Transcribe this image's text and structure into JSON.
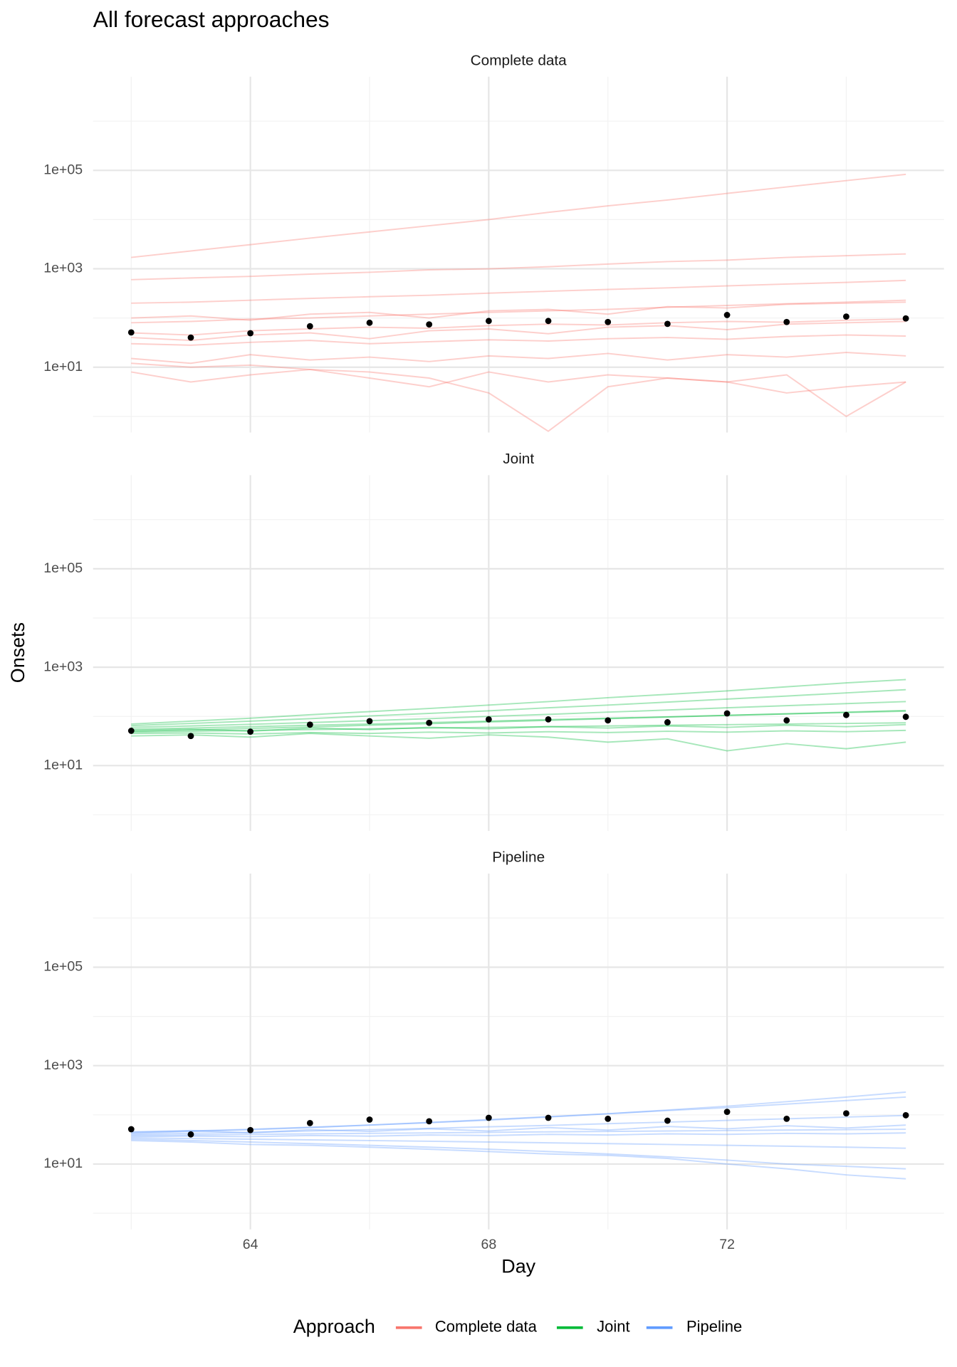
{
  "chart_data": {
    "type": "line",
    "title": "All forecast approaches",
    "x_label": "Day",
    "y_label": "Onsets",
    "legend_title": "Approach",
    "log_y": true,
    "grid": true,
    "line_opacity": 0.35,
    "legend_position": "bottom",
    "x": [
      62,
      63,
      64,
      65,
      66,
      67,
      68,
      69,
      70,
      71,
      72,
      73,
      74,
      75
    ],
    "observed": [
      51,
      40,
      49,
      68,
      80,
      74,
      87,
      87,
      83,
      76,
      115,
      83,
      107,
      98
    ],
    "xlim": [
      61.36,
      75.64
    ],
    "xticks": [
      64,
      68,
      72
    ],
    "minor_xticks": [
      62,
      66,
      70,
      74
    ],
    "ylim": [
      0.47,
      8000000
    ],
    "yticks": [
      {
        "value": 10,
        "label": "1e+01"
      },
      {
        "value": 1000,
        "label": "1e+03"
      },
      {
        "value": 100000,
        "label": "1e+05"
      }
    ],
    "minor_yticks": [
      1,
      100,
      10000,
      1000000
    ],
    "facets": [
      {
        "title": "Complete data",
        "color": "#f8766d",
        "samples": [
          [
            1700,
            2300,
            3100,
            4200,
            5600,
            7500,
            10000,
            14000,
            19000,
            25000,
            34000,
            46000,
            62000,
            83000
          ],
          [
            600,
            650,
            700,
            780,
            850,
            950,
            1000,
            1100,
            1250,
            1400,
            1500,
            1700,
            1850,
            2000
          ],
          [
            200,
            210,
            230,
            250,
            270,
            290,
            320,
            350,
            380,
            410,
            450,
            490,
            530,
            580
          ],
          [
            80,
            85,
            95,
            100,
            110,
            120,
            130,
            140,
            150,
            165,
            180,
            195,
            210,
            230
          ],
          [
            50,
            45,
            55,
            60,
            65,
            62,
            70,
            75,
            72,
            80,
            85,
            82,
            90,
            95
          ],
          [
            30,
            28,
            32,
            35,
            30,
            33,
            36,
            34,
            38,
            40,
            37,
            42,
            45,
            43
          ],
          [
            15,
            12,
            18,
            14,
            16,
            13,
            17,
            15,
            19,
            14,
            18,
            16,
            20,
            17
          ],
          [
            8,
            5,
            7,
            9,
            6,
            4,
            8,
            5,
            7,
            6,
            5,
            3,
            4,
            5
          ],
          [
            100,
            110,
            90,
            120,
            130,
            100,
            140,
            150,
            120,
            170,
            160,
            190,
            200,
            210
          ],
          [
            40,
            35,
            45,
            50,
            38,
            55,
            60,
            48,
            65,
            70,
            58,
            75,
            80,
            85
          ],
          [
            12,
            10,
            11,
            9,
            8,
            6,
            3,
            0.5,
            4,
            6,
            5,
            7,
            1,
            5
          ]
        ]
      },
      {
        "title": "Joint",
        "color": "#00ba38",
        "samples": [
          [
            55,
            58,
            62,
            66,
            70,
            75,
            80,
            86,
            92,
            98,
            105,
            112,
            120,
            128
          ],
          [
            60,
            64,
            69,
            75,
            82,
            90,
            100,
            110,
            122,
            135,
            150,
            165,
            182,
            200
          ],
          [
            65,
            72,
            80,
            90,
            102,
            115,
            130,
            150,
            170,
            195,
            225,
            260,
            300,
            350
          ],
          [
            70,
            80,
            92,
            108,
            125,
            145,
            170,
            200,
            240,
            280,
            330,
            400,
            480,
            560
          ],
          [
            48,
            50,
            52,
            54,
            56,
            58,
            60,
            62,
            64,
            66,
            68,
            70,
            72,
            74
          ],
          [
            45,
            46,
            44,
            47,
            45,
            48,
            46,
            49,
            47,
            50,
            48,
            51,
            49,
            52
          ],
          [
            52,
            55,
            50,
            58,
            54,
            60,
            56,
            62,
            58,
            64,
            60,
            66,
            62,
            68
          ],
          [
            40,
            42,
            38,
            45,
            40,
            36,
            42,
            38,
            30,
            35,
            20,
            28,
            22,
            30
          ],
          [
            50,
            53,
            57,
            61,
            66,
            71,
            77,
            83,
            90,
            97,
            105,
            113,
            122,
            132
          ]
        ]
      },
      {
        "title": "Pipeline",
        "color": "#619cff",
        "samples": [
          [
            38,
            39,
            40,
            41,
            42,
            43,
            44,
            45,
            46,
            47,
            48,
            49,
            50,
            51
          ],
          [
            40,
            42,
            44,
            47,
            50,
            53,
            57,
            61,
            66,
            71,
            77,
            83,
            90,
            97
          ],
          [
            42,
            46,
            50,
            55,
            62,
            70,
            80,
            92,
            105,
            122,
            140,
            165,
            195,
            230
          ],
          [
            36,
            37,
            36,
            38,
            37,
            39,
            38,
            40,
            39,
            41,
            40,
            42,
            41,
            43
          ],
          [
            34,
            33,
            32,
            31,
            30,
            29,
            28,
            27,
            26,
            25,
            24,
            23,
            22,
            21
          ],
          [
            32,
            30,
            28,
            26,
            24,
            22,
            20,
            18,
            16,
            14,
            12,
            10,
            9,
            8
          ],
          [
            45,
            48,
            43,
            50,
            46,
            52,
            47,
            55,
            49,
            58,
            52,
            60,
            54,
            62
          ],
          [
            30,
            28,
            25,
            24,
            22,
            20,
            18,
            16,
            15,
            13,
            10,
            8,
            6,
            5
          ],
          [
            44,
            47,
            51,
            56,
            62,
            69,
            78,
            90,
            105,
            125,
            150,
            185,
            230,
            290
          ]
        ]
      }
    ]
  }
}
